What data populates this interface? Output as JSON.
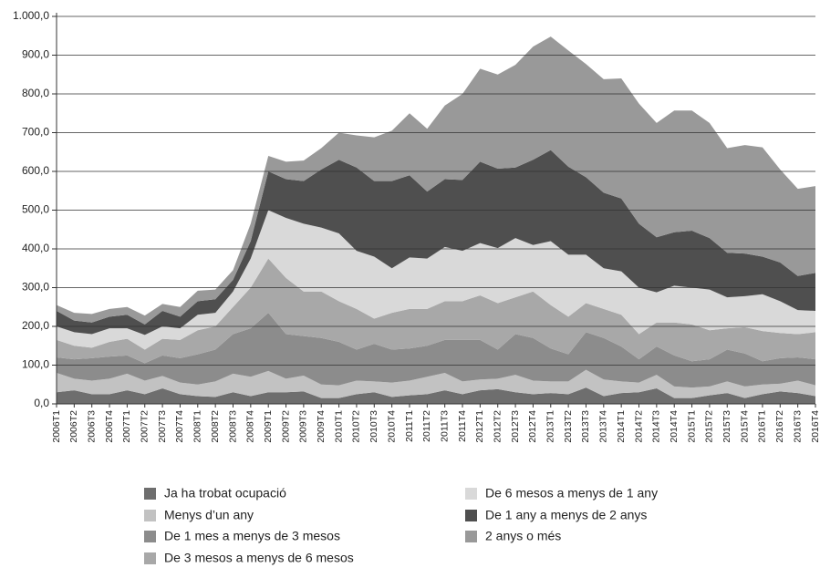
{
  "chart_data": {
    "type": "stacked_area",
    "categories": [
      "2006T1",
      "2006T2",
      "2006T3",
      "2006T4",
      "2007T1",
      "2007T2",
      "2007T3",
      "2007T4",
      "2008T1",
      "2008T2",
      "2008T3",
      "2008T4",
      "2009T1",
      "2009T2",
      "2009T3",
      "2009T4",
      "2010T1",
      "2010T2",
      "2010T3",
      "2010T4",
      "2011T1",
      "2011T2",
      "2011T3",
      "2011T4",
      "2012T1",
      "2012T2",
      "2012T3",
      "2012T4",
      "2013T1",
      "2013T2",
      "2013T3",
      "2013T4",
      "2014T1",
      "2014T2",
      "2014T3",
      "2014T4",
      "2015T1",
      "2015T2",
      "2015T3",
      "2015T4",
      "2016T1",
      "2016T2",
      "2016T3",
      "2016T4"
    ],
    "ylim": [
      0,
      1000
    ],
    "yticks": [
      {
        "value": 0,
        "label": "0,0"
      },
      {
        "value": 100,
        "label": "100,0"
      },
      {
        "value": 200,
        "label": "200,0"
      },
      {
        "value": 300,
        "label": "300,0"
      },
      {
        "value": 400,
        "label": "400,0"
      },
      {
        "value": 500,
        "label": "500,0"
      },
      {
        "value": 600,
        "label": "600,0"
      },
      {
        "value": 700,
        "label": "700,0"
      },
      {
        "value": 800,
        "label": "800,0"
      },
      {
        "value": 900,
        "label": "900,0"
      },
      {
        "value": 1000,
        "label": "1.000,0"
      }
    ],
    "grid": true,
    "series": [
      {
        "name": "Ja ha trobat ocupació",
        "color": "#6e6e6e",
        "values": [
          30,
          35,
          25,
          25,
          35,
          25,
          40,
          25,
          20,
          18,
          30,
          20,
          30,
          30,
          32,
          15,
          15,
          25,
          30,
          18,
          22,
          25,
          35,
          25,
          35,
          38,
          30,
          25,
          28,
          25,
          42,
          20,
          28,
          30,
          40,
          15,
          15,
          22,
          28,
          15,
          25,
          32,
          28,
          20
        ]
      },
      {
        "name": "Menys d’un any",
        "color": "#c2c2c2",
        "values": [
          50,
          30,
          35,
          40,
          43,
          35,
          32,
          30,
          30,
          40,
          48,
          50,
          55,
          35,
          41,
          35,
          33,
          35,
          28,
          37,
          38,
          45,
          45,
          33,
          28,
          27,
          45,
          35,
          30,
          33,
          46,
          43,
          30,
          25,
          35,
          30,
          27,
          23,
          30,
          30,
          25,
          20,
          32,
          28
        ]
      },
      {
        "name": "De 1 mes a menys de 3 mesos",
        "color": "#8c8c8c",
        "values": [
          40,
          50,
          58,
          57,
          47,
          45,
          53,
          63,
          78,
          82,
          102,
          125,
          150,
          115,
          102,
          120,
          112,
          80,
          97,
          85,
          83,
          80,
          85,
          107,
          102,
          75,
          105,
          110,
          85,
          70,
          97,
          107,
          90,
          60,
          73,
          80,
          68,
          70,
          82,
          85,
          60,
          66,
          60,
          67
        ]
      },
      {
        "name": "De 3 mesos a menys de 6 mesos",
        "color": "#a8a8a8",
        "values": [
          45,
          35,
          27,
          38,
          43,
          35,
          43,
          47,
          62,
          60,
          70,
          105,
          140,
          145,
          115,
          120,
          105,
          105,
          65,
          95,
          102,
          95,
          100,
          100,
          115,
          120,
          95,
          120,
          112,
          97,
          75,
          75,
          82,
          65,
          62,
          85,
          95,
          75,
          55,
          68,
          78,
          65,
          60,
          70
        ]
      },
      {
        "name": "De 6 mesos a menys de 1 any",
        "color": "#d9d9d9",
        "values": [
          35,
          35,
          35,
          35,
          27,
          38,
          32,
          30,
          40,
          35,
          40,
          75,
          125,
          155,
          175,
          165,
          175,
          150,
          160,
          115,
          133,
          130,
          140,
          130,
          135,
          142,
          153,
          120,
          165,
          160,
          125,
          105,
          112,
          120,
          78,
          95,
          95,
          105,
          80,
          80,
          95,
          82,
          62,
          55
        ]
      },
      {
        "name": "De 1 any a menys de 2 anys",
        "color": "#4f4f4f",
        "values": [
          40,
          30,
          30,
          30,
          35,
          27,
          40,
          30,
          35,
          35,
          30,
          45,
          100,
          100,
          110,
          150,
          190,
          215,
          195,
          225,
          212,
          173,
          175,
          183,
          210,
          205,
          182,
          220,
          235,
          227,
          200,
          195,
          188,
          165,
          142,
          138,
          147,
          133,
          115,
          110,
          97,
          100,
          88,
          98
        ]
      },
      {
        "name": "2 anys o més",
        "color": "#999999",
        "values": [
          15,
          20,
          22,
          20,
          20,
          23,
          18,
          25,
          27,
          25,
          25,
          45,
          40,
          45,
          53,
          55,
          70,
          83,
          113,
          130,
          160,
          162,
          190,
          222,
          240,
          243,
          265,
          292,
          293,
          300,
          292,
          293,
          310,
          310,
          295,
          314,
          310,
          297,
          270,
          280,
          282,
          240,
          225,
          224
        ]
      }
    ]
  }
}
